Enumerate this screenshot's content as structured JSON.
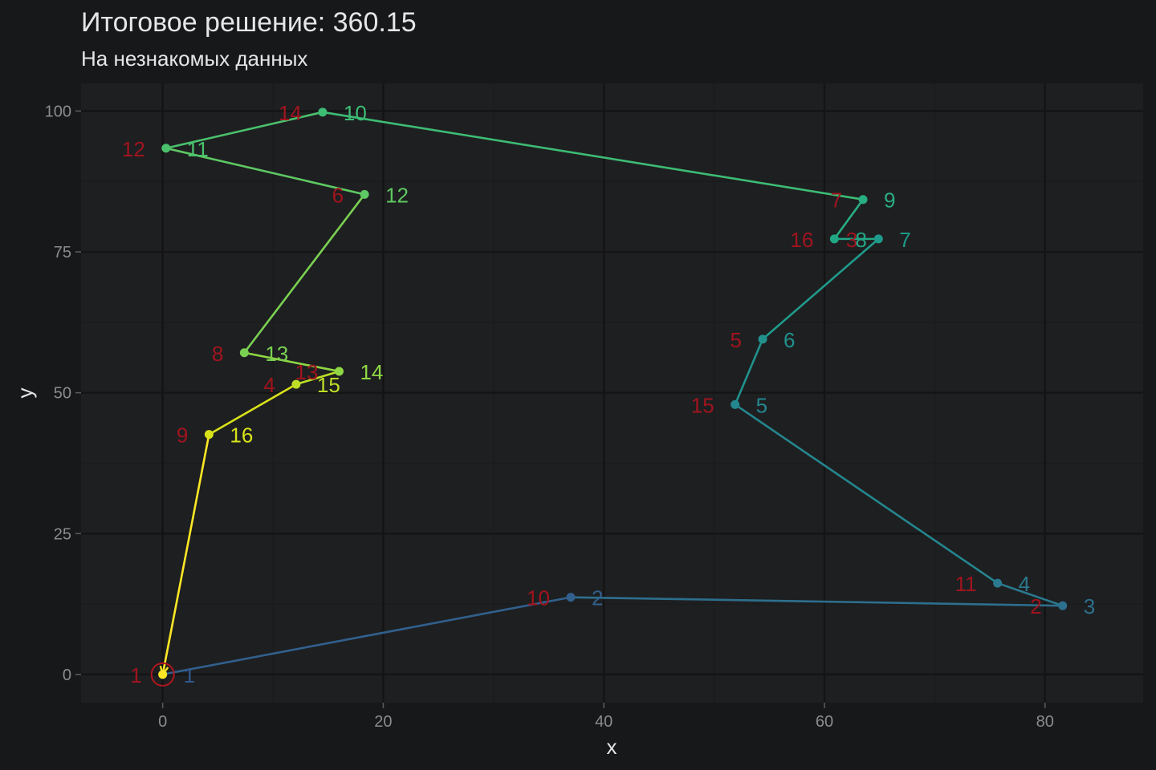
{
  "chart_data": {
    "type": "line",
    "title": "Итоговое решение: 360.15",
    "subtitle": "На незнакомых данных",
    "xlabel": "x",
    "ylabel": "y",
    "xlim": [
      -7.4,
      88.9
    ],
    "ylim": [
      -5,
      104.9
    ],
    "x_ticks": [
      0,
      20,
      40,
      60,
      80
    ],
    "y_ticks": [
      0,
      25,
      50,
      75,
      100
    ],
    "grid": true,
    "legend": "none",
    "depot": {
      "x": 0,
      "y": 0
    },
    "colors": {
      "background": "#17181a",
      "panel": "#1e1f21",
      "grid_major": "#141414",
      "grid_minor": "#1a1b1d",
      "node_label": "#a0141e",
      "depot_ring": "#b0161e"
    },
    "route": [
      {
        "x": 0.0,
        "y": 0.0,
        "node": "1",
        "order": "1",
        "color": "#31598f"
      },
      {
        "x": 37.0,
        "y": 13.7,
        "node": "10",
        "order": "2",
        "color": "#31608d"
      },
      {
        "x": 81.6,
        "y": 12.2,
        "node": "2",
        "order": "3",
        "color": "#2d6f8e"
      },
      {
        "x": 75.7,
        "y": 16.2,
        "node": "11",
        "order": "4",
        "color": "#2a798e"
      },
      {
        "x": 51.9,
        "y": 47.9,
        "node": "15",
        "order": "5",
        "color": "#24868e"
      },
      {
        "x": 54.4,
        "y": 59.5,
        "node": "5",
        "order": "6",
        "color": "#21918c"
      },
      {
        "x": 64.9,
        "y": 77.3,
        "node": "3",
        "order": "7",
        "color": "#1f9a8a"
      },
      {
        "x": 60.9,
        "y": 77.3,
        "node": "16",
        "order": "8",
        "color": "#22a785"
      },
      {
        "x": 63.5,
        "y": 84.3,
        "node": "7",
        "order": "9",
        "color": "#28ae80"
      },
      {
        "x": 14.5,
        "y": 99.8,
        "node": "14",
        "order": "10",
        "color": "#3dbc74"
      },
      {
        "x": 0.3,
        "y": 93.4,
        "node": "12",
        "order": "11",
        "color": "#4ac16d"
      },
      {
        "x": 18.3,
        "y": 85.2,
        "node": "6",
        "order": "12",
        "color": "#5ec962"
      },
      {
        "x": 7.4,
        "y": 57.1,
        "node": "8",
        "order": "13",
        "color": "#7ad151"
      },
      {
        "x": 16.0,
        "y": 53.8,
        "node": "13",
        "order": "14",
        "color": "#8fd744"
      },
      {
        "x": 12.1,
        "y": 51.5,
        "node": "4",
        "order": "15",
        "color": "#bddf26"
      },
      {
        "x": 4.2,
        "y": 42.6,
        "node": "9",
        "order": "16",
        "color": "#d8e219"
      },
      {
        "x": 0.0,
        "y": 0.0,
        "node": "",
        "order": "",
        "color": "#fde725"
      }
    ]
  }
}
